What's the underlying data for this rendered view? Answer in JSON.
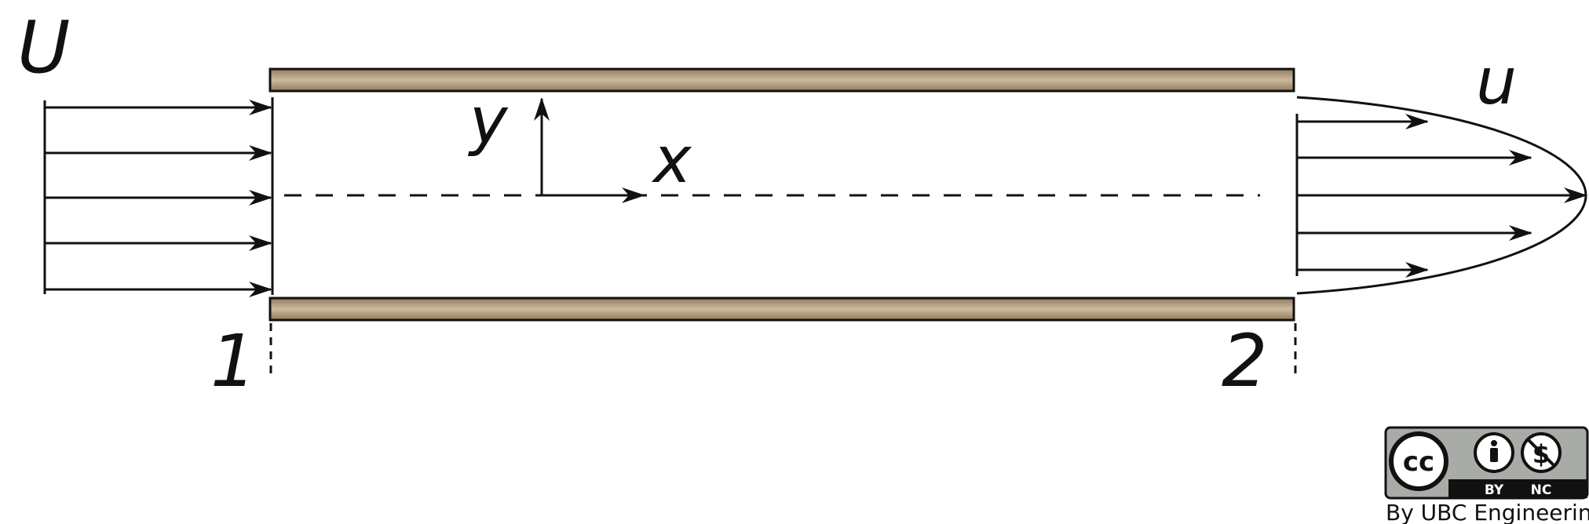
{
  "labels": {
    "inlet_velocity": "U",
    "outlet_velocity": "u",
    "y_axis": "y",
    "x_axis": "x",
    "section_1": "1",
    "section_2": "2"
  },
  "license": {
    "cc": "cc",
    "by": "BY",
    "nc": "NC",
    "credit": "By UBC Engineering"
  },
  "colors": {
    "wall": "#a08a6e",
    "wall_light": "#cbb79a",
    "line": "#111111",
    "badge_grey": "#a9aba7"
  }
}
